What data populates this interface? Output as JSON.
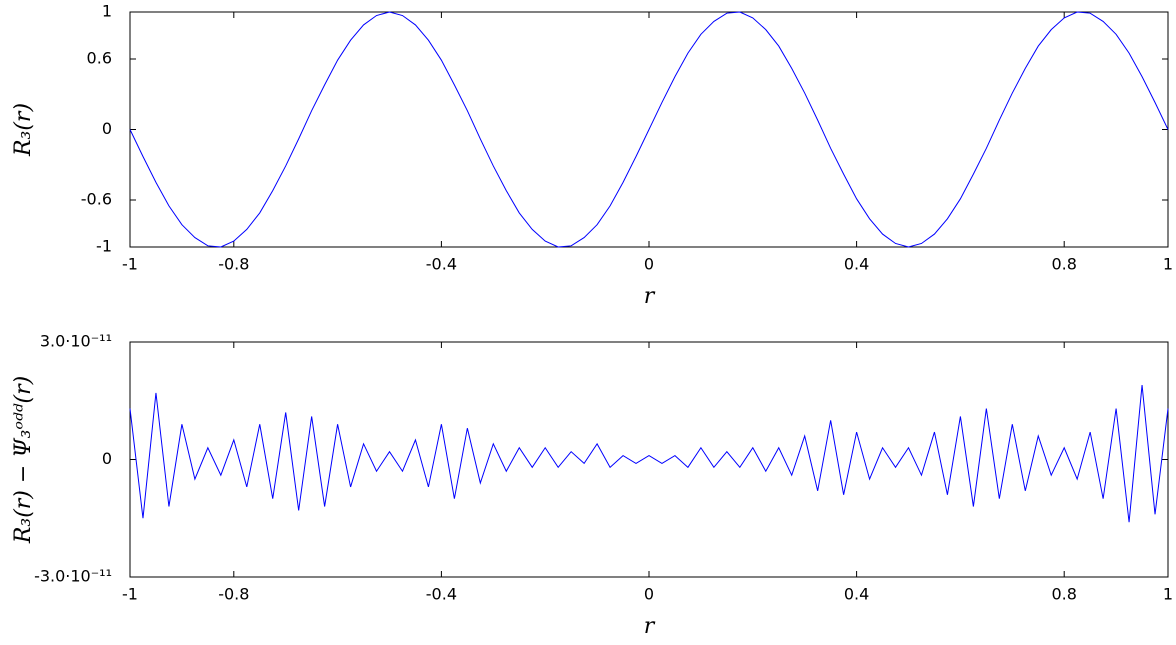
{
  "chart_data": [
    {
      "type": "line",
      "xlabel": "r",
      "ylabel": "R₃(r)",
      "x": [
        -1,
        -0.975,
        -0.95,
        -0.925,
        -0.9,
        -0.875,
        -0.85,
        -0.825,
        -0.8,
        -0.775,
        -0.75,
        -0.725,
        -0.7,
        -0.675,
        -0.65,
        -0.625,
        -0.6,
        -0.575,
        -0.55,
        -0.525,
        -0.5,
        -0.475,
        -0.45,
        -0.425,
        -0.4,
        -0.375,
        -0.35,
        -0.325,
        -0.3,
        -0.275,
        -0.25,
        -0.225,
        -0.2,
        -0.175,
        -0.15,
        -0.125,
        -0.1,
        -0.075,
        -0.05,
        -0.025,
        0,
        0.025,
        0.05,
        0.075,
        0.1,
        0.125,
        0.15,
        0.175,
        0.2,
        0.225,
        0.25,
        0.275,
        0.3,
        0.325,
        0.35,
        0.375,
        0.4,
        0.425,
        0.45,
        0.475,
        0.5,
        0.525,
        0.55,
        0.575,
        0.6,
        0.625,
        0.65,
        0.675,
        0.7,
        0.725,
        0.75,
        0.775,
        0.8,
        0.825,
        0.85,
        0.875,
        0.9,
        0.925,
        0.95,
        0.975,
        1
      ],
      "series": [
        {
          "color": "#0000ff",
          "values": [
            0,
            -0.23,
            -0.45,
            -0.65,
            -0.81,
            -0.92,
            -0.99,
            -1,
            -0.95,
            -0.85,
            -0.71,
            -0.52,
            -0.31,
            -0.08,
            0.16,
            0.38,
            0.59,
            0.76,
            0.89,
            0.97,
            1,
            0.97,
            0.89,
            0.76,
            0.59,
            0.38,
            0.16,
            -0.08,
            -0.31,
            -0.52,
            -0.71,
            -0.85,
            -0.95,
            -1,
            -0.99,
            -0.92,
            -0.81,
            -0.65,
            -0.45,
            -0.23,
            0,
            0.23,
            0.45,
            0.65,
            0.81,
            0.92,
            0.99,
            1,
            0.95,
            0.85,
            0.71,
            0.52,
            0.31,
            0.08,
            -0.16,
            -0.38,
            -0.59,
            -0.76,
            -0.89,
            -0.97,
            -1,
            -0.97,
            -0.89,
            -0.76,
            -0.59,
            -0.38,
            -0.16,
            0.08,
            0.31,
            0.52,
            0.71,
            0.85,
            0.95,
            1,
            0.99,
            0.92,
            0.81,
            0.65,
            0.45,
            0.23,
            0
          ]
        }
      ],
      "xlim": [
        -1,
        1
      ],
      "xticks": [
        -1,
        -0.8,
        -0.4,
        0,
        0.4,
        0.8,
        1
      ],
      "ylim": [
        -1,
        1
      ],
      "yticks": [
        -1,
        -0.6,
        0,
        0.6,
        1
      ]
    },
    {
      "type": "line",
      "xlabel": "r",
      "ylabel": "R₃(r) − Ψ₃ᵒᵈᵈ(r)",
      "x": [
        -1,
        -0.975,
        -0.95,
        -0.925,
        -0.9,
        -0.875,
        -0.85,
        -0.825,
        -0.8,
        -0.775,
        -0.75,
        -0.725,
        -0.7,
        -0.675,
        -0.65,
        -0.625,
        -0.6,
        -0.575,
        -0.55,
        -0.525,
        -0.5,
        -0.475,
        -0.45,
        -0.425,
        -0.4,
        -0.375,
        -0.35,
        -0.325,
        -0.3,
        -0.275,
        -0.25,
        -0.225,
        -0.2,
        -0.175,
        -0.15,
        -0.125,
        -0.1,
        -0.075,
        -0.05,
        -0.025,
        0,
        0.025,
        0.05,
        0.075,
        0.1,
        0.125,
        0.15,
        0.175,
        0.2,
        0.225,
        0.25,
        0.275,
        0.3,
        0.325,
        0.35,
        0.375,
        0.4,
        0.425,
        0.45,
        0.475,
        0.5,
        0.525,
        0.55,
        0.575,
        0.6,
        0.625,
        0.65,
        0.675,
        0.7,
        0.725,
        0.75,
        0.775,
        0.8,
        0.825,
        0.85,
        0.875,
        0.9,
        0.925,
        0.95,
        0.975,
        1
      ],
      "series": [
        {
          "color": "#0000ff",
          "values": [
            1.3e-11,
            -1.5e-11,
            1.7e-11,
            -1.2e-11,
            9e-12,
            -5e-12,
            3e-12,
            -4e-12,
            5e-12,
            -7e-12,
            9e-12,
            -1e-11,
            1.2e-11,
            -1.3e-11,
            1.1e-11,
            -1.2e-11,
            9e-12,
            -7e-12,
            4e-12,
            -3e-12,
            2e-12,
            -3e-12,
            5e-12,
            -7e-12,
            9e-12,
            -1e-11,
            8e-12,
            -6e-12,
            4e-12,
            -3e-12,
            3e-12,
            -2e-12,
            3e-12,
            -2e-12,
            2e-12,
            -1e-12,
            4e-12,
            -2e-12,
            1e-12,
            -1e-12,
            1e-12,
            -1e-12,
            1e-12,
            -2e-12,
            3e-12,
            -2e-12,
            2e-12,
            -2e-12,
            3e-12,
            -3e-12,
            3e-12,
            -4e-12,
            6e-12,
            -8e-12,
            1e-11,
            -9e-12,
            7e-12,
            -5e-12,
            3e-12,
            -2e-12,
            3e-12,
            -4e-12,
            7e-12,
            -9e-12,
            1.1e-11,
            -1.2e-11,
            1.3e-11,
            -1e-11,
            9e-12,
            -8e-12,
            6e-12,
            -4e-12,
            3e-12,
            -5e-12,
            7e-12,
            -1e-11,
            1.3e-11,
            -1.6e-11,
            1.9e-11,
            -1.4e-11,
            1.3e-11
          ]
        }
      ],
      "xlim": [
        -1,
        1
      ],
      "xticks": [
        -1,
        -0.8,
        -0.4,
        0,
        0.4,
        0.8,
        1
      ],
      "ylim": [
        -3e-11,
        3e-11
      ],
      "yticks": [
        {
          "value": -3e-11,
          "label": "-3.0·10⁻¹¹"
        },
        0,
        {
          "value": 3e-11,
          "label": "3.0·10⁻¹¹"
        }
      ]
    }
  ]
}
